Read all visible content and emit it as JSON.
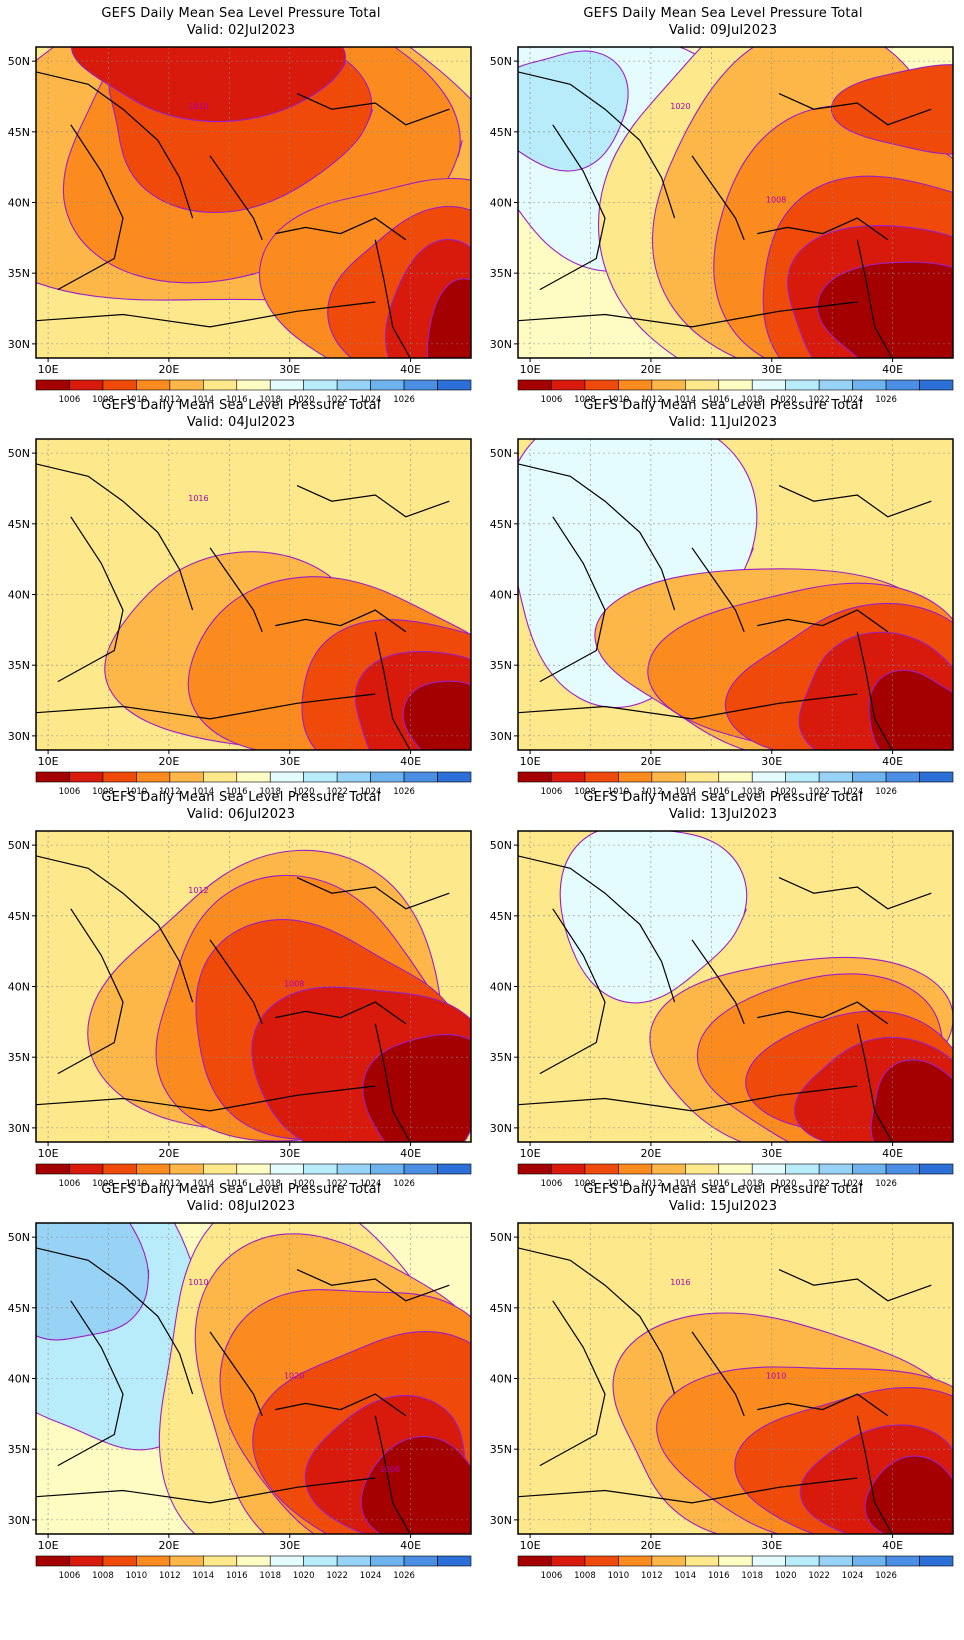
{
  "figure": {
    "panel_title": "GEFS Daily Mean Sea Level Pressure Total",
    "lat_ticks": [
      "30N",
      "35N",
      "40N",
      "45N",
      "50N"
    ],
    "lon_ticks": [
      "10E",
      "20E",
      "30E",
      "40E"
    ],
    "colorbar": {
      "levels": [
        "1006",
        "1008",
        "1010",
        "1012",
        "1014",
        "1016",
        "1018",
        "1020",
        "1022",
        "1024",
        "1026"
      ],
      "colors": [
        "#a50000",
        "#d81a0c",
        "#ef4a0a",
        "#fb8a1f",
        "#fdb748",
        "#fde98c",
        "#fefcc2",
        "#e4fbff",
        "#b9ecfa",
        "#98d3f5",
        "#6fb3ee",
        "#4a8fe3",
        "#2c6fd6"
      ]
    },
    "isoline_color": "#9b1fc6"
  },
  "panels": [
    {
      "valid": "Valid: 02Jul2023",
      "labels": [
        "1010"
      ]
    },
    {
      "valid": "Valid: 09Jul2023",
      "labels": [
        "1020",
        "1008"
      ]
    },
    {
      "valid": "Valid: 04Jul2023",
      "labels": [
        "1016"
      ]
    },
    {
      "valid": "Valid: 11Jul2023",
      "labels": []
    },
    {
      "valid": "Valid: 06Jul2023",
      "labels": [
        "1012",
        "1008"
      ]
    },
    {
      "valid": "Valid: 13Jul2023",
      "labels": []
    },
    {
      "valid": "Valid: 08Jul2023",
      "labels": [
        "1010",
        "1020",
        "1008"
      ]
    },
    {
      "valid": "Valid: 15Jul2023",
      "labels": [
        "1016",
        "1010"
      ]
    }
  ]
}
